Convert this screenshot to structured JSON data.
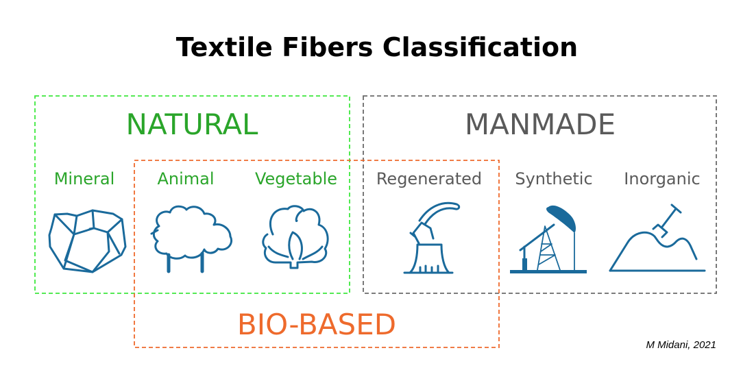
{
  "title": "Textile Fibers Classification",
  "colors": {
    "natural": "#2aa52a",
    "natural_border": "#3de83d",
    "manmade": "#5a5a5a",
    "biobased": "#ee6a2c",
    "icon": "#1a6a9b"
  },
  "groups": {
    "natural": {
      "label": "NATURAL"
    },
    "manmade": {
      "label": "MANMADE"
    },
    "biobased": {
      "label": "BIO-BASED"
    }
  },
  "categories": [
    {
      "label": "Mineral",
      "icon": "rock-icon"
    },
    {
      "label": "Animal",
      "icon": "sheep-icon"
    },
    {
      "label": "Vegetable",
      "icon": "cotton-icon"
    },
    {
      "label": "Regenerated",
      "icon": "axe-stump-icon"
    },
    {
      "label": "Synthetic",
      "icon": "oil-pump-icon"
    },
    {
      "label": "Inorganic",
      "icon": "shovel-mound-icon"
    }
  ],
  "credit": "M Midani, 2021"
}
